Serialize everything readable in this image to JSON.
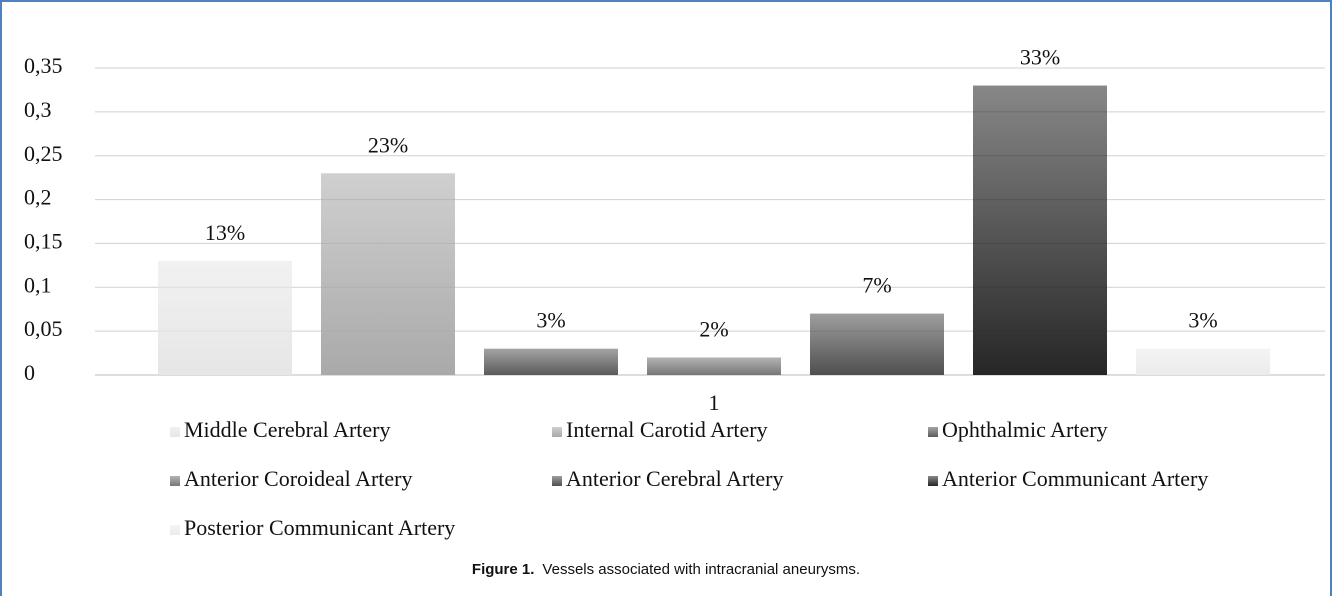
{
  "chart_data": {
    "type": "bar",
    "categories": [
      "1"
    ],
    "series": [
      {
        "name": "Middle Cerebral Artery",
        "color": "#e6e6e6",
        "values": [
          0.13
        ],
        "value_labels": [
          "13%"
        ]
      },
      {
        "name": "Internal Carotid Artery",
        "color": "#a9a9a9",
        "values": [
          0.23
        ],
        "value_labels": [
          "23%"
        ]
      },
      {
        "name": "Ophthalmic Artery",
        "color": "#5a5a5a",
        "values": [
          0.03
        ],
        "value_labels": [
          "3%"
        ]
      },
      {
        "name": "Anterior Coroideal Artery",
        "color": "#777777",
        "values": [
          0.02
        ],
        "value_labels": [
          "2%"
        ]
      },
      {
        "name": "Anterior Cerebral Artery",
        "color": "#4f4f4f",
        "values": [
          0.07
        ],
        "value_labels": [
          "7%"
        ]
      },
      {
        "name": "Anterior Communicant Artery",
        "color": "#262626",
        "values": [
          0.33
        ],
        "value_labels": [
          "33%"
        ]
      },
      {
        "name": "Posterior Communicant Artery",
        "color": "#ebebeb",
        "values": [
          0.03
        ],
        "value_labels": [
          "3%"
        ]
      }
    ],
    "ylim": [
      0,
      0.35
    ],
    "yticks": [
      0,
      {
        "value": 0.05,
        "label": "0,05"
      },
      {
        "value": 0.1,
        "label": "0,1"
      },
      {
        "value": 0.15,
        "label": "0,15"
      },
      {
        "value": 0.2,
        "label": "0,2"
      },
      {
        "value": 0.25,
        "label": "0,25"
      },
      {
        "value": 0.3,
        "label": "0,3"
      },
      {
        "value": 0.35,
        "label": "0,35"
      }
    ],
    "grid": true,
    "legend": "bottom",
    "caption_label": "Figure 1.",
    "caption": "Vessels associated with intracranial aneurysms."
  }
}
